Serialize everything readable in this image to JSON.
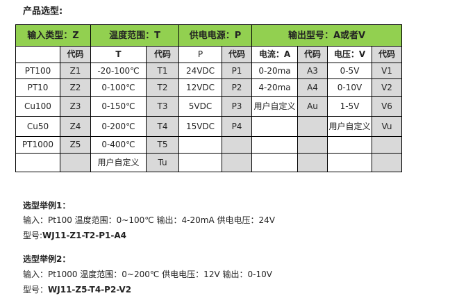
{
  "title": "产品选型:",
  "table": {
    "header": [
      {
        "label": "输入类型：Z",
        "span": 2
      },
      {
        "label": "温度范围：T",
        "span": 2
      },
      {
        "label": "供电电源：P",
        "span": 2
      },
      {
        "label": "输出型号：A或者V",
        "span": 4
      }
    ],
    "subheader": [
      "",
      "代码",
      "T",
      "代码",
      "P",
      "代码",
      "电流：A",
      "代码",
      "电压：V",
      "代码"
    ],
    "rows": [
      [
        "PT100",
        "Z1",
        "-20-100℃",
        "T1",
        "24VDC",
        "P1",
        "0-20ma",
        "A3",
        "0-5V",
        "V1"
      ],
      [
        "PT10",
        "Z2",
        "0-100℃",
        "T2",
        "12VDC",
        "P2",
        "4-20ma",
        "A4",
        "0-10V",
        "V2"
      ],
      [
        "Cu100",
        "Z3",
        "0-150℃",
        "T3",
        "5VDC",
        "P3",
        "用户自定义",
        "Au",
        "1-5V",
        "V6"
      ],
      [
        "Cu50",
        "Z4",
        "0-200℃",
        "T4",
        "15VDC",
        "P4",
        "",
        "",
        "用户自定义",
        "Vu"
      ],
      [
        "PT1000",
        "Z5",
        "0-400℃",
        "T5",
        "",
        "",
        "",
        "",
        "",
        ""
      ],
      [
        "",
        "",
        "用户自定义",
        "Tu",
        "",
        "",
        "",
        "",
        "",
        ""
      ]
    ],
    "colors": {
      "header": "#92d050",
      "code_column": "#d9d9d9"
    }
  },
  "examples": [
    {
      "heading": "选型举例1：",
      "desc": "输入：Pt100  温度范围：0~100℃  输出：4-20mA  供电电压：24V",
      "model_label": "型号:",
      "model": "WJ11-Z1-T2-P1-A4"
    },
    {
      "heading": "选型举例2：",
      "desc": "输入：Pt1000 温度范围：0~200℃  供电电压：12V  输出：0-10V",
      "model_label": "型号：",
      "model": "WJ11-Z5-T4-P2-V2"
    }
  ]
}
